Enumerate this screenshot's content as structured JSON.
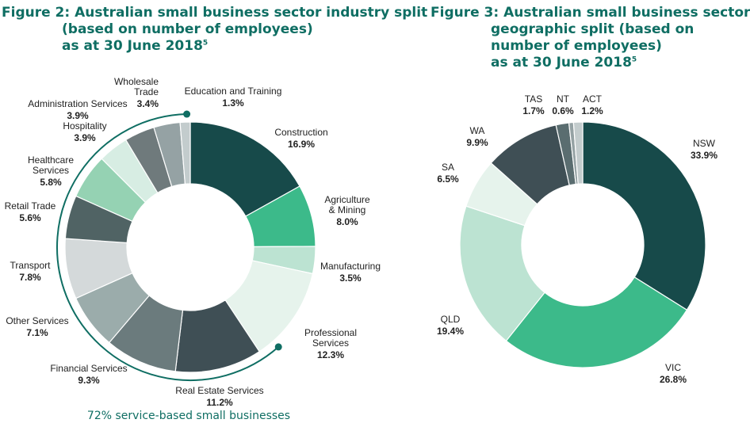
{
  "colors": {
    "title": "#0f6e63",
    "bracket": "#0f6e63",
    "industry": [
      "#174a4a",
      "#3cba8a",
      "#bce3d2",
      "#e6f3ec",
      "#3f4f55",
      "#6b7b7d",
      "#9bacab",
      "#d4d9da",
      "#506364",
      "#95d2b3",
      "#d7ede3",
      "#6f7a7c",
      "#95a2a4",
      "#c3cccd"
    ],
    "geo": [
      "#174a4a",
      "#3cba8a",
      "#bce3d2",
      "#e6f3ec",
      "#3f4f55",
      "#5a6d70",
      "#95a2a4",
      "#c3cccd"
    ]
  },
  "chart_data": [
    {
      "type": "pie",
      "variant": "donut",
      "title_lines": [
        "Figure 2: Australian small business sector industry split",
        "(based on number of employees)",
        "as at 30 June 2018"
      ],
      "title_footnote": "5",
      "slices": [
        {
          "label": [
            "Construction"
          ],
          "value": 16.9,
          "display": "16.9%"
        },
        {
          "label": [
            "Agriculture",
            "& Mining"
          ],
          "value": 8.0,
          "display": "8.0%"
        },
        {
          "label": [
            "Manufacturing"
          ],
          "value": 3.5,
          "display": "3.5%"
        },
        {
          "label": [
            "Professional",
            "Services"
          ],
          "value": 12.3,
          "display": "12.3%"
        },
        {
          "label": [
            "Real Estate Services"
          ],
          "value": 11.2,
          "display": "11.2%"
        },
        {
          "label": [
            "Financial Services"
          ],
          "value": 9.3,
          "display": "9.3%"
        },
        {
          "label": [
            "Other Services"
          ],
          "value": 7.1,
          "display": "7.1%"
        },
        {
          "label": [
            "Transport"
          ],
          "value": 7.8,
          "display": "7.8%"
        },
        {
          "label": [
            "Retail Trade"
          ],
          "value": 5.6,
          "display": "5.6%"
        },
        {
          "label": [
            "Healthcare",
            "Services"
          ],
          "value": 5.8,
          "display": "5.8%"
        },
        {
          "label": [
            "Hospitality"
          ],
          "value": 3.9,
          "display": "3.9%"
        },
        {
          "label": [
            "Administration Services"
          ],
          "value": 3.9,
          "display": "3.9%"
        },
        {
          "label": [
            "Wholesale",
            "Trade"
          ],
          "value": 3.4,
          "display": "3.4%"
        },
        {
          "label": [
            "Education and Training"
          ],
          "value": 1.3,
          "display": "1.3%"
        }
      ],
      "annotation": "72% service-based small businesses"
    },
    {
      "type": "pie",
      "variant": "donut",
      "title_lines": [
        "Figure 3: Australian small business sector",
        "geographic split (based on",
        "number of employees)",
        "as at 30 June 2018"
      ],
      "title_footnote": "5",
      "slices": [
        {
          "label": [
            "NSW"
          ],
          "value": 33.9,
          "display": "33.9%"
        },
        {
          "label": [
            "VIC"
          ],
          "value": 26.8,
          "display": "26.8%"
        },
        {
          "label": [
            "QLD"
          ],
          "value": 19.4,
          "display": "19.4%"
        },
        {
          "label": [
            "SA"
          ],
          "value": 6.5,
          "display": "6.5%"
        },
        {
          "label": [
            "WA"
          ],
          "value": 9.9,
          "display": "9.9%"
        },
        {
          "label": [
            "TAS"
          ],
          "value": 1.7,
          "display": "1.7%"
        },
        {
          "label": [
            "NT"
          ],
          "value": 0.6,
          "display": "0.6%"
        },
        {
          "label": [
            "ACT"
          ],
          "value": 1.2,
          "display": "1.2%"
        }
      ]
    }
  ]
}
